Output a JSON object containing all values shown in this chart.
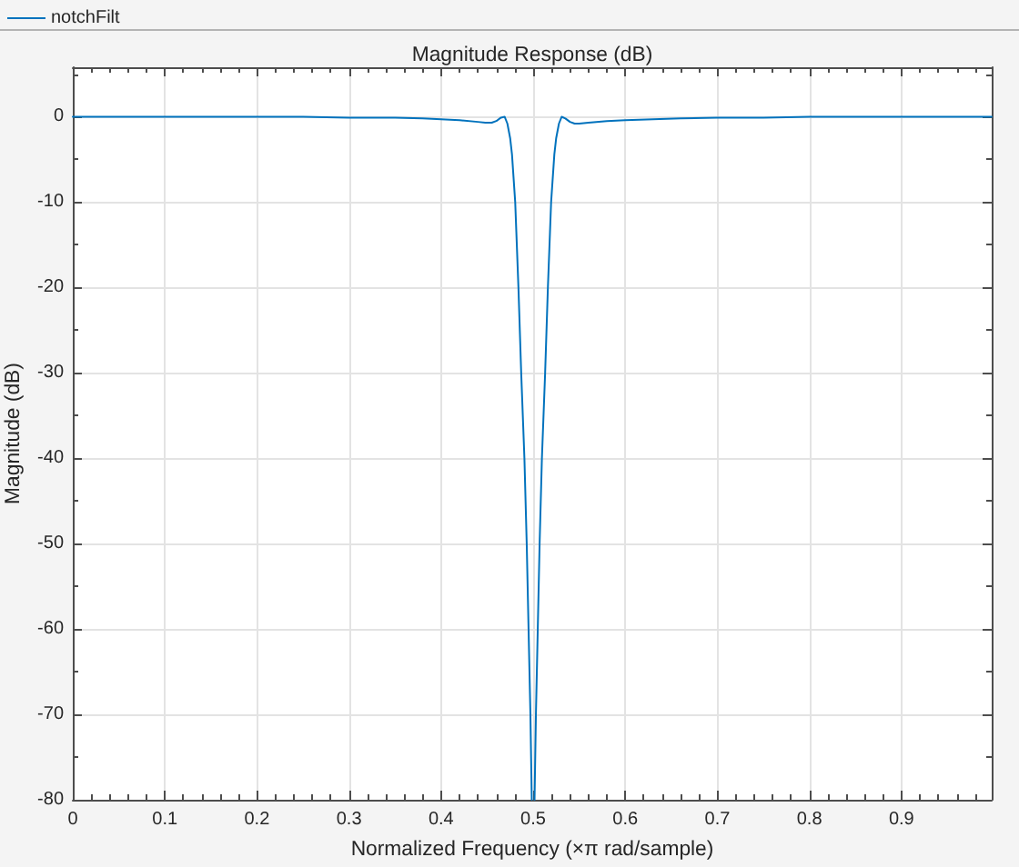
{
  "chart_data": {
    "type": "line",
    "title": "Magnitude Response (dB)",
    "xlabel": "Normalized Frequency (×π rad/sample)",
    "ylabel": "Magnitude (dB)",
    "x": [
      0,
      0.05,
      0.1,
      0.15,
      0.2,
      0.25,
      0.3,
      0.35,
      0.38,
      0.4,
      0.42,
      0.44,
      0.448,
      0.455,
      0.46,
      0.465,
      0.469,
      0.472,
      0.475,
      0.477,
      0.4805,
      0.484,
      0.487,
      0.4905,
      0.493,
      0.495,
      0.497,
      0.4985,
      0.5,
      0.5015,
      0.503,
      0.505,
      0.507,
      0.5095,
      0.513,
      0.516,
      0.5195,
      0.523,
      0.525,
      0.528,
      0.531,
      0.535,
      0.54,
      0.545,
      0.55,
      0.56,
      0.58,
      0.6,
      0.63,
      0.66,
      0.7,
      0.75,
      0.8,
      0.85,
      0.9,
      0.95,
      0.998
    ],
    "series": [
      {
        "name": "notchFilt",
        "color": "#0072bd",
        "values": [
          0,
          0,
          0,
          0,
          0,
          0,
          -0.1,
          -0.1,
          -0.2,
          -0.3,
          -0.4,
          -0.6,
          -0.7,
          -0.7,
          -0.5,
          -0.1,
          0,
          -0.8,
          -2.5,
          -4.4,
          -10,
          -20,
          -30,
          -40,
          -50,
          -60,
          -70,
          -80,
          null,
          -80,
          -70,
          -60,
          -50,
          -40,
          -30,
          -20,
          -10,
          -4.4,
          -2.5,
          -0.8,
          0,
          -0.2,
          -0.6,
          -0.8,
          -0.8,
          -0.7,
          -0.5,
          -0.4,
          -0.3,
          -0.2,
          -0.1,
          -0.1,
          0,
          0,
          0,
          0,
          0
        ]
      }
    ],
    "xlim": [
      0,
      0.998
    ],
    "xticks": [
      0,
      {
        "value": 0.02,
        "label": null
      },
      {
        "value": 0.04,
        "label": null
      },
      {
        "value": 0.06,
        "label": null
      },
      {
        "value": 0.08,
        "label": null
      },
      0.1,
      {
        "value": 0.12,
        "label": null
      },
      {
        "value": 0.14,
        "label": null
      },
      {
        "value": 0.16,
        "label": null
      },
      {
        "value": 0.18,
        "label": null
      },
      0.2,
      {
        "value": 0.22,
        "label": null
      },
      {
        "value": 0.24,
        "label": null
      },
      {
        "value": 0.26,
        "label": null
      },
      {
        "value": 0.28,
        "label": null
      },
      0.3,
      {
        "value": 0.32,
        "label": null
      },
      {
        "value": 0.34,
        "label": null
      },
      {
        "value": 0.36,
        "label": null
      },
      {
        "value": 0.38,
        "label": null
      },
      0.4,
      {
        "value": 0.42,
        "label": null
      },
      {
        "value": 0.44,
        "label": null
      },
      {
        "value": 0.46,
        "label": null
      },
      {
        "value": 0.48,
        "label": null
      },
      0.5,
      {
        "value": 0.52,
        "label": null
      },
      {
        "value": 0.54,
        "label": null
      },
      {
        "value": 0.56,
        "label": null
      },
      {
        "value": 0.58,
        "label": null
      },
      0.6,
      {
        "value": 0.62,
        "label": null
      },
      {
        "value": 0.64,
        "label": null
      },
      {
        "value": 0.66,
        "label": null
      },
      {
        "value": 0.68,
        "label": null
      },
      0.7,
      {
        "value": 0.72,
        "label": null
      },
      {
        "value": 0.74,
        "label": null
      },
      {
        "value": 0.76,
        "label": null
      },
      {
        "value": 0.78,
        "label": null
      },
      0.8,
      {
        "value": 0.82,
        "label": null
      },
      {
        "value": 0.84,
        "label": null
      },
      {
        "value": 0.86,
        "label": null
      },
      {
        "value": 0.88,
        "label": null
      },
      0.9,
      {
        "value": 0.92,
        "label": null
      },
      {
        "value": 0.94,
        "label": null
      },
      {
        "value": 0.96,
        "label": null
      },
      {
        "value": 0.98,
        "label": null
      }
    ],
    "ylim": [
      -80,
      5.8
    ],
    "yticks": [
      -80,
      {
        "value": -75,
        "label": null
      },
      -70,
      {
        "value": -65,
        "label": null
      },
      -60,
      {
        "value": -55,
        "label": null
      },
      -50,
      {
        "value": -45,
        "label": null
      },
      -40,
      {
        "value": -35,
        "label": null
      },
      -30,
      {
        "value": -25,
        "label": null
      },
      -20,
      {
        "value": -15,
        "label": null
      },
      -10,
      {
        "value": -5,
        "label": null
      },
      0,
      {
        "value": 5,
        "label": null
      }
    ],
    "grid": true,
    "legend": "top left",
    "marker": "none",
    "line_style": "solid"
  }
}
